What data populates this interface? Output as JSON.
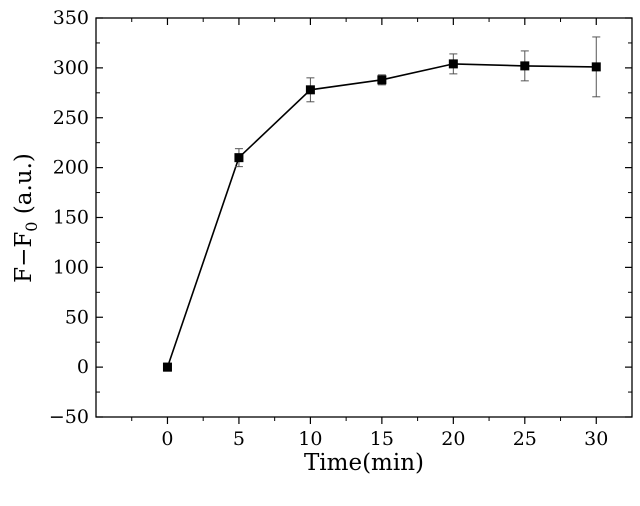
{
  "chart_data": {
    "type": "line",
    "xlabel": "Time(min)",
    "ylabel": {
      "main": "F−F",
      "sub": "0",
      "unit": " (a.u.)"
    },
    "xlim": [
      -5,
      32.5
    ],
    "ylim": [
      -50,
      350
    ],
    "xticks": [
      0,
      5,
      10,
      15,
      20,
      25,
      30
    ],
    "yticks": [
      -50,
      0,
      50,
      100,
      150,
      200,
      250,
      300,
      350
    ],
    "xtick_labels": [
      "0",
      "5",
      "10",
      "15",
      "20",
      "25",
      "30"
    ],
    "ytick_labels": [
      "−50",
      "0",
      "50",
      "100",
      "150",
      "200",
      "250",
      "300",
      "350"
    ],
    "grid": false,
    "legend": "none",
    "series": [
      {
        "marker": "square",
        "color": "#000000",
        "x": [
          0,
          5,
          10,
          15,
          20,
          25,
          30
        ],
        "y": [
          0,
          210,
          278,
          288,
          304,
          302,
          301
        ],
        "error": [
          4,
          9,
          12,
          5,
          10,
          15,
          30
        ]
      }
    ]
  }
}
